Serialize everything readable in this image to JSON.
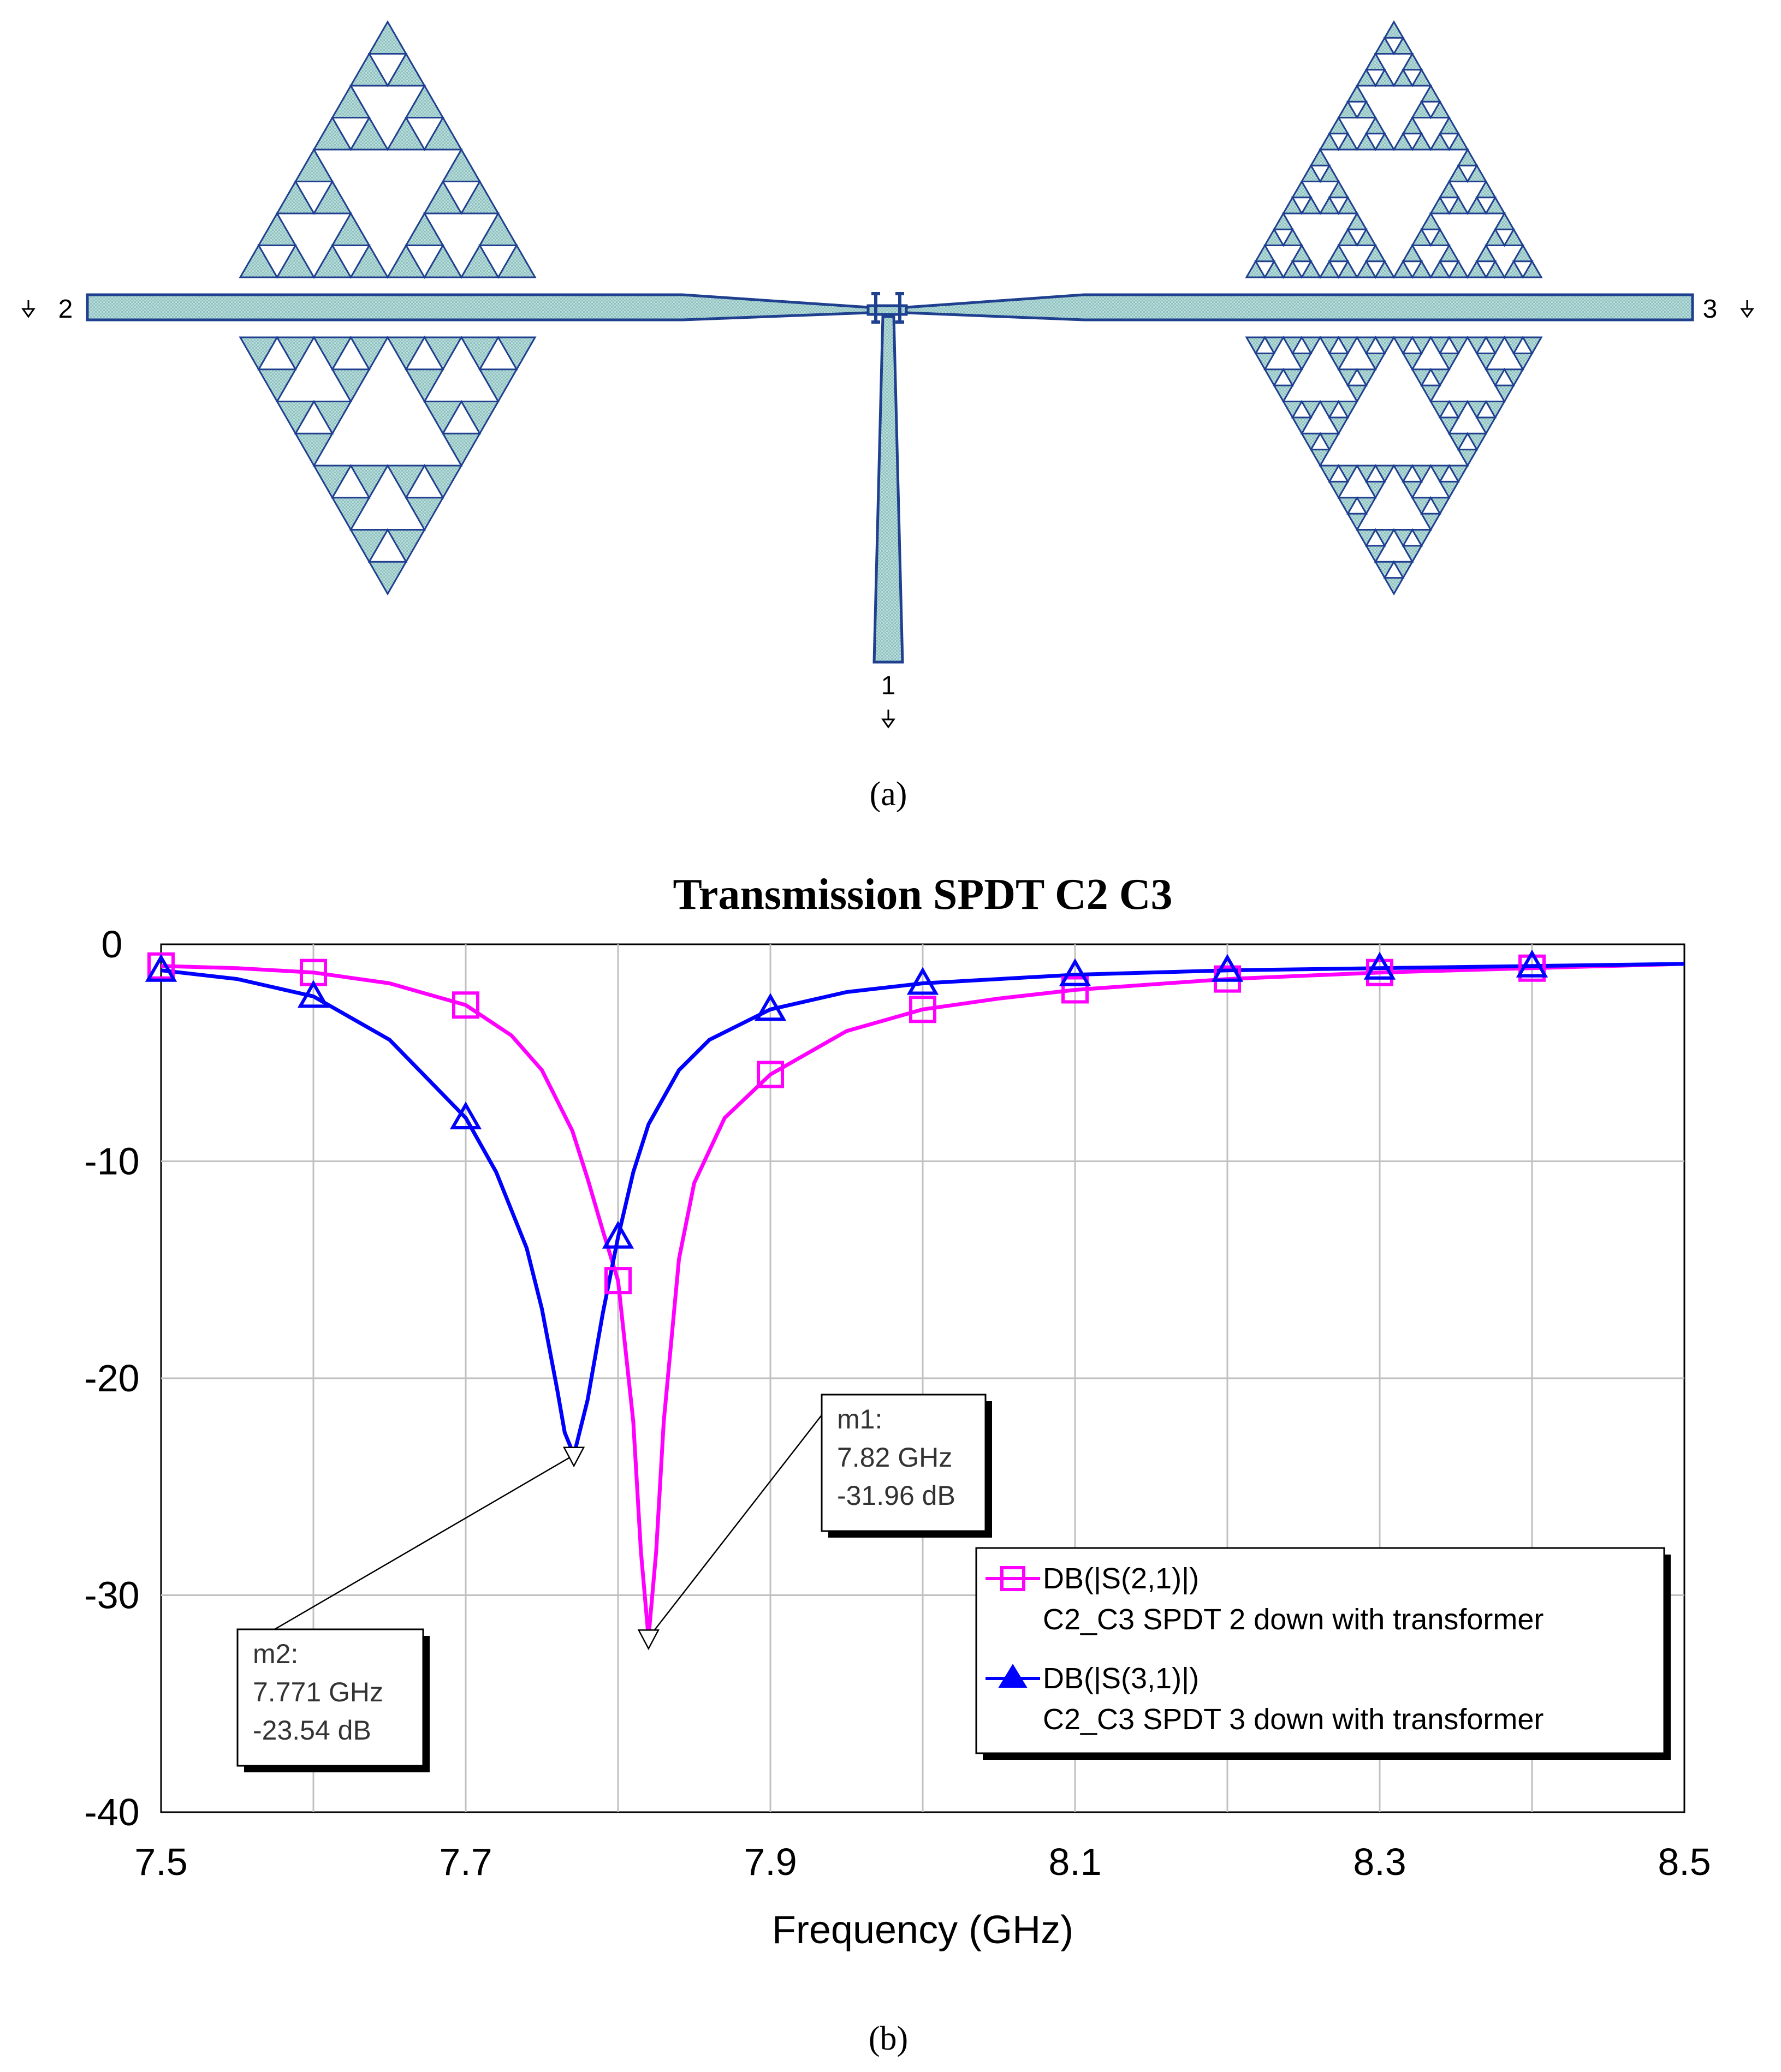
{
  "panel_a": {
    "caption": "(a)",
    "ports": {
      "p1": "1",
      "p2": "2",
      "p3": "3"
    },
    "colors": {
      "fill": "#a8d4d2",
      "stroke": "#1f3f8f"
    }
  },
  "panel_b": {
    "caption": "(b)"
  },
  "chart_data": {
    "type": "line",
    "title": "Transmission SPDT C2 C3",
    "xlabel": "Frequency (GHz)",
    "ylabel": "",
    "xlim": [
      7.5,
      8.5
    ],
    "ylim": [
      -40,
      0
    ],
    "xticks": [
      "7.5",
      "7.7",
      "7.9",
      "8.1",
      "8.3",
      "8.5"
    ],
    "xtick_values": [
      7.5,
      7.7,
      7.9,
      8.1,
      8.3,
      8.5
    ],
    "yticks": [
      "0",
      "-10",
      "-20",
      "-30",
      "-40"
    ],
    "ytick_values": [
      0,
      -10,
      -20,
      -30,
      -40
    ],
    "grid": true,
    "legend_position": "bottom-right",
    "series": [
      {
        "name": "DB(|S(2,1)|)",
        "subtitle": "C2_C3 SPDT 2 down with transformer",
        "color": "#ff00ff",
        "marker": "square",
        "x": [
          7.5,
          7.55,
          7.6,
          7.65,
          7.7,
          7.73,
          7.75,
          7.77,
          7.78,
          7.79,
          7.8,
          7.81,
          7.815,
          7.82,
          7.825,
          7.83,
          7.84,
          7.85,
          7.87,
          7.9,
          7.95,
          8.0,
          8.05,
          8.1,
          8.2,
          8.3,
          8.4,
          8.5
        ],
        "y": [
          -1.0,
          -1.1,
          -1.3,
          -1.8,
          -2.8,
          -4.2,
          -5.8,
          -8.6,
          -10.8,
          -13.2,
          -15.5,
          -22.0,
          -28.0,
          -31.96,
          -28.0,
          -22.0,
          -14.5,
          -11.0,
          -8.0,
          -6.0,
          -4.0,
          -3.0,
          -2.5,
          -2.1,
          -1.6,
          -1.3,
          -1.1,
          -0.9
        ],
        "marker_x": [
          7.5,
          7.6,
          7.7,
          7.8,
          7.9,
          8.0,
          8.1,
          8.2,
          8.3,
          8.4
        ],
        "marker_y": [
          -1.0,
          -1.3,
          -2.8,
          -15.5,
          -6.0,
          -3.0,
          -2.1,
          -1.6,
          -1.3,
          -1.1
        ]
      },
      {
        "name": "DB(|S(3,1)|)",
        "subtitle": "C2_C3 SPDT 3 down with transformer",
        "color": "#0000ff",
        "marker": "triangle",
        "x": [
          7.5,
          7.55,
          7.6,
          7.65,
          7.7,
          7.72,
          7.74,
          7.75,
          7.76,
          7.765,
          7.771,
          7.78,
          7.79,
          7.8,
          7.81,
          7.82,
          7.84,
          7.86,
          7.9,
          7.95,
          8.0,
          8.05,
          8.1,
          8.2,
          8.3,
          8.4,
          8.5
        ],
        "y": [
          -1.2,
          -1.6,
          -2.4,
          -4.4,
          -8.0,
          -10.5,
          -14.0,
          -16.8,
          -20.5,
          -22.5,
          -23.54,
          -21.0,
          -17.0,
          -13.5,
          -10.5,
          -8.3,
          -5.8,
          -4.4,
          -3.0,
          -2.2,
          -1.8,
          -1.6,
          -1.4,
          -1.2,
          -1.1,
          -1.0,
          -0.9
        ],
        "marker_x": [
          7.5,
          7.6,
          7.7,
          7.8,
          7.9,
          8.0,
          8.1,
          8.2,
          8.3,
          8.4
        ],
        "marker_y": [
          -1.2,
          -2.4,
          -8.0,
          -13.5,
          -3.0,
          -1.8,
          -1.4,
          -1.2,
          -1.1,
          -1.0
        ]
      }
    ],
    "annotations": [
      {
        "id": "m1",
        "lines": [
          "m1:",
          "7.82 GHz",
          "-31.96 dB"
        ],
        "x": 7.82,
        "y": -31.96
      },
      {
        "id": "m2",
        "lines": [
          "m2:",
          "7.771 GHz",
          "-23.54 dB"
        ],
        "x": 7.771,
        "y": -23.54
      }
    ]
  }
}
